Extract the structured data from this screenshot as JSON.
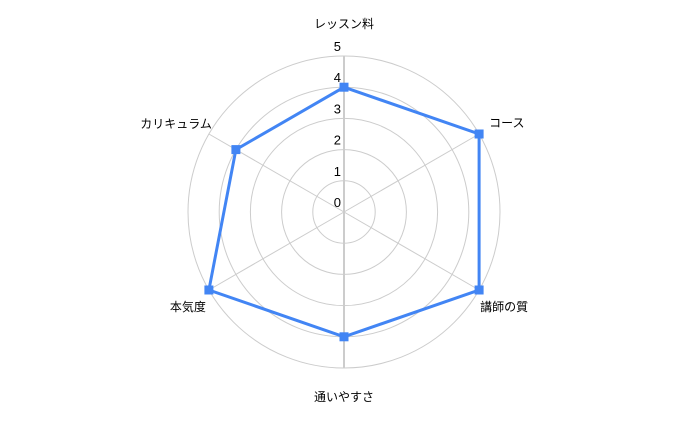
{
  "chart_data": {
    "type": "radar",
    "categories": [
      "レッスン料",
      "コース",
      "講師の質",
      "通いやすさ",
      "本気度",
      "カリキュラム"
    ],
    "values": [
      4,
      5,
      5,
      4,
      5,
      4
    ],
    "r_axis": {
      "min": 0,
      "max": 5,
      "ticks": [
        0,
        1,
        2,
        3,
        4,
        5
      ]
    },
    "grid": true,
    "grid_shape": "circle",
    "legend": "none",
    "style": {
      "line_color": "#4285f4",
      "marker_shape": "square",
      "marker_color": "#4285f4",
      "grid_color": "#cccccc",
      "axis_color": "#cccccc",
      "text_color": "#000000",
      "background": "#ffffff"
    }
  }
}
